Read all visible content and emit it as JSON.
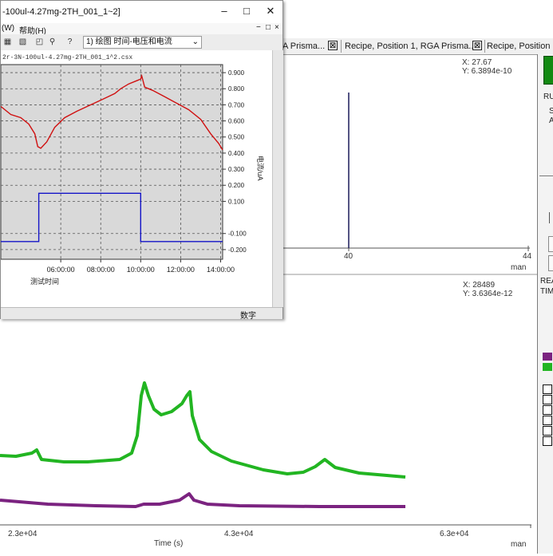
{
  "tabs": [
    {
      "label": "A Prisma...",
      "close": "☒"
    },
    {
      "label": "Recipe, Position 1, RGA Prisma...",
      "close": "☒"
    },
    {
      "label": "Recipe, Position 1,",
      "close": ""
    }
  ],
  "top_plot": {
    "cursor_x": "X: 27.67",
    "cursor_y": "Y: 6.3894e-10",
    "ticks": [
      "40",
      "44"
    ],
    "unit": "man"
  },
  "bottom_plot": {
    "cursor_x": "X: 28489",
    "cursor_y": "Y: 3.6364e-12",
    "ticks": [
      "2.3e+04",
      "4.3e+04",
      "6.3e+04"
    ],
    "xlabel": "Time (s)",
    "unit": "man",
    "colors": {
      "green": "#22b522",
      "purple": "#7b2380"
    }
  },
  "right_panel": {
    "ru": "RU",
    "s": "S",
    "a": "A",
    "rea": "REA",
    "tim": "TIM",
    "legend_colors": [
      "#7b2380",
      "#22b522"
    ]
  },
  "origin_window": {
    "title": "-100ul-4.27mg-2TH_001_1~2]",
    "menu": {
      "w": "(W)",
      "help": "帮助(H)"
    },
    "combo": "1) 绘图  时间-电压和电流",
    "graph_header": "2r-3N-100ul-4.27mg-2TH_001_1^2.csx",
    "status": "数字",
    "chart_data": {
      "type": "line",
      "x_ticks": [
        "06:00:00",
        "08:00:00",
        "10:00:00",
        "12:00:00",
        "14:00:00"
      ],
      "xlabel": "测试时间",
      "y_ticks": [
        "0.900",
        "0.800",
        "0.700",
        "0.600",
        "0.500",
        "0.400",
        "0.300",
        "0.200",
        "0.100",
        "-0.100",
        "-0.200"
      ],
      "ylabel": "电流/uA",
      "series": [
        {
          "color": "#d01010",
          "x": [
            3.0,
            3.5,
            4.0,
            4.4,
            4.7,
            4.85,
            5.0,
            5.3,
            5.7,
            6.2,
            6.8,
            7.5,
            8.2,
            8.7,
            9.0,
            9.4,
            9.8,
            10.0,
            10.05,
            10.2,
            10.6,
            11.2,
            11.8,
            12.4,
            13.0,
            13.5,
            13.9,
            14.1
          ],
          "y": [
            0.69,
            0.64,
            0.62,
            0.58,
            0.52,
            0.44,
            0.43,
            0.47,
            0.56,
            0.62,
            0.66,
            0.7,
            0.74,
            0.77,
            0.8,
            0.83,
            0.85,
            0.86,
            0.88,
            0.81,
            0.79,
            0.75,
            0.71,
            0.67,
            0.61,
            0.52,
            0.46,
            0.42
          ]
        },
        {
          "color": "#1414c8",
          "x": [
            3.0,
            4.9,
            4.9,
            10.0,
            10.0,
            14.1
          ],
          "y": [
            -0.15,
            -0.15,
            0.15,
            0.15,
            -0.15,
            -0.15
          ]
        }
      ]
    }
  }
}
